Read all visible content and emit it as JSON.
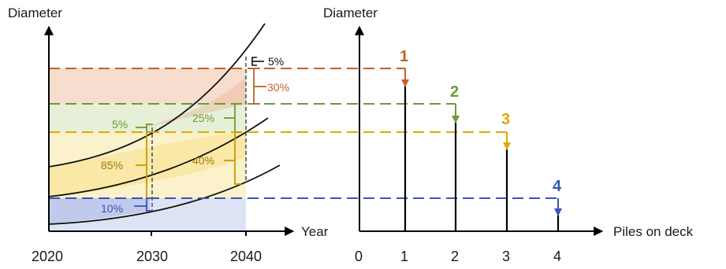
{
  "colors": {
    "orange": "#C0622A",
    "green": "#6E9A36",
    "yellow": "#E0A800",
    "blue": "#3A53B4",
    "gold_text": "#A0780A",
    "grey": "#666666"
  },
  "left_chart": {
    "y_title": "Diameter",
    "x_title": "Year",
    "x_ticks": [
      "2020",
      "2030",
      "2040"
    ],
    "labels": {
      "p5_top": "5%",
      "p30": "30%",
      "p25": "25%",
      "p5_green": "5%",
      "p85": "85%",
      "p40": "40%",
      "p10": "10%"
    }
  },
  "right_chart": {
    "y_title": "Diameter",
    "x_title": "Piles on deck",
    "x_ticks": [
      "0",
      "1",
      "2",
      "3",
      "4"
    ],
    "markers": [
      "1",
      "2",
      "3",
      "4"
    ]
  }
}
